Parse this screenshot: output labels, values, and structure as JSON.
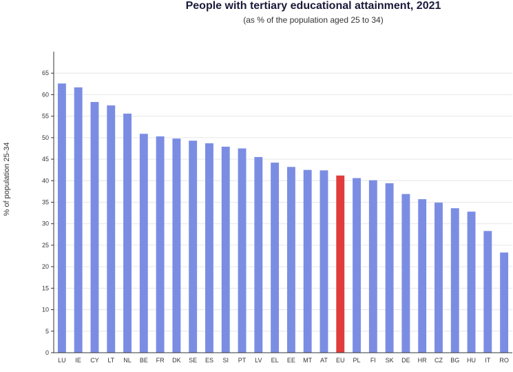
{
  "chart_data": {
    "type": "bar",
    "title": "People with tertiary educational attainment, 2021",
    "subtitle": "(as % of the population aged 25 to 34)",
    "xlabel": "",
    "ylabel": "% of population 25-34",
    "ylim": [
      0,
      70
    ],
    "yticks": [
      0,
      5,
      10,
      15,
      20,
      25,
      30,
      35,
      40,
      45,
      50,
      55,
      60,
      65
    ],
    "grid": true,
    "categories": [
      "LU",
      "IE",
      "CY",
      "LT",
      "NL",
      "BE",
      "FR",
      "DK",
      "SE",
      "ES",
      "SI",
      "PT",
      "LV",
      "EL",
      "EE",
      "MT",
      "AT",
      "EU",
      "PL",
      "FI",
      "SK",
      "DE",
      "HR",
      "CZ",
      "BG",
      "HU",
      "IT",
      "RO"
    ],
    "values": [
      62.6,
      61.7,
      58.3,
      57.5,
      55.6,
      50.9,
      50.3,
      49.8,
      49.3,
      48.7,
      47.9,
      47.5,
      45.5,
      44.2,
      43.2,
      42.5,
      42.4,
      41.2,
      40.6,
      40.1,
      39.4,
      36.9,
      35.7,
      34.9,
      33.6,
      32.8,
      28.3,
      23.3
    ],
    "highlight_category": "EU",
    "colors": {
      "bar": "#7b8de3",
      "highlight": "#e03c3c",
      "grid": "#e6e6e6",
      "axis": "#333333"
    }
  }
}
